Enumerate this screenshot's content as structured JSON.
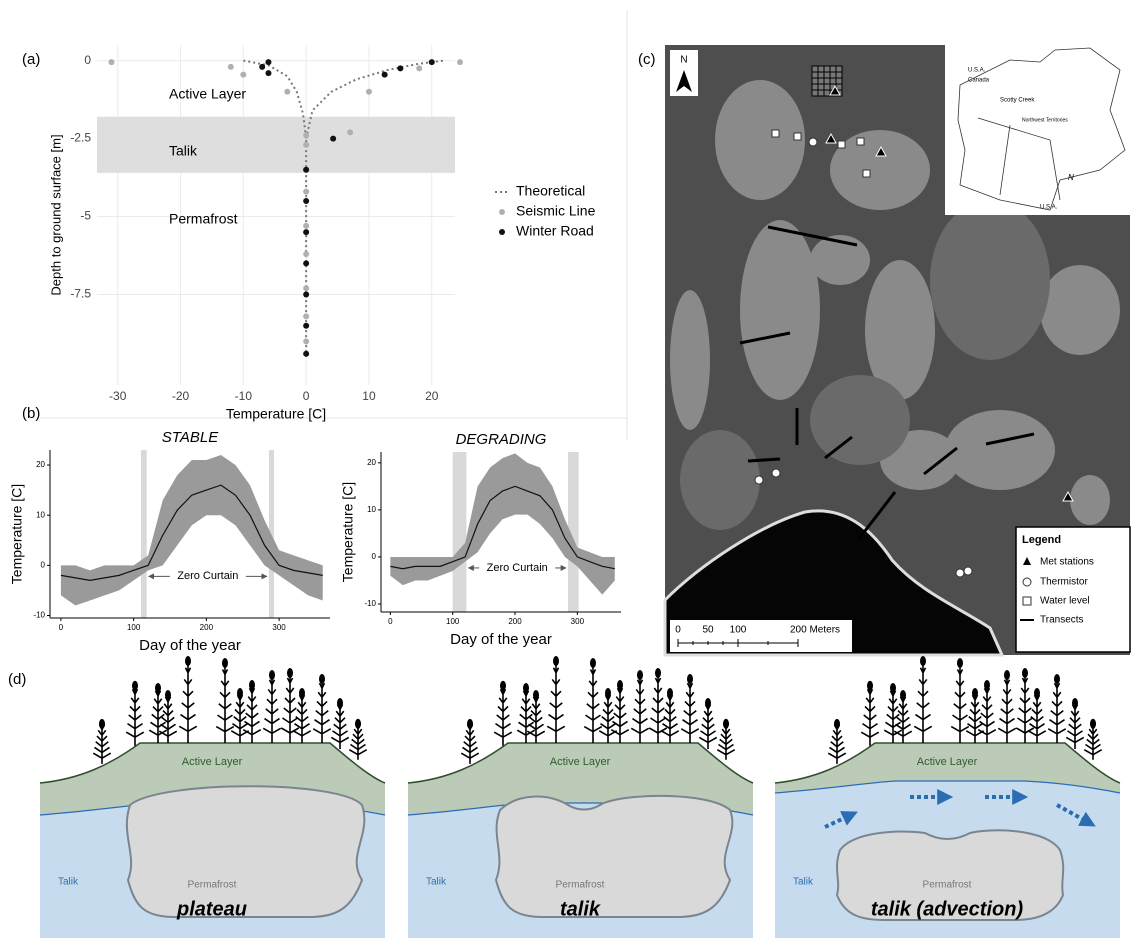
{
  "panel_labels": [
    "(a)",
    "(b)",
    "(c)",
    "(d)"
  ],
  "chart_data": [
    {
      "type": "scatter",
      "xlabel": "Temperature [C]",
      "ylabel": "Depth to ground surface [m]",
      "xlim": [
        -33.3,
        23.7
      ],
      "ylim": [
        -10.4,
        0.5
      ],
      "xticks": [
        -30,
        -20,
        -10,
        0,
        10,
        20
      ],
      "yticks": [
        0,
        -2.5,
        -5,
        -7.5
      ],
      "grid": true,
      "annotations": [
        "Active Layer",
        "Talik",
        "Permafrost"
      ],
      "talik_band": [
        -1.8,
        -3.6
      ],
      "band_color": "#dedede",
      "series": [
        {
          "name": "Theoretical",
          "color": "#777777",
          "style": "dotted-line",
          "x": [
            -10,
            -6,
            -3,
            -1.5,
            -0.5,
            0,
            0,
            0,
            0,
            1,
            4,
            8,
            13,
            18,
            22
          ],
          "values": [
            0,
            -0.15,
            -0.5,
            -1.0,
            -1.7,
            -2.5,
            -9.5,
            null,
            -2.5,
            -1.6,
            -1.0,
            -0.6,
            -0.3,
            -0.1,
            0
          ]
        },
        {
          "name": "Seismic Line",
          "color": "#b0b0b0",
          "style": "points",
          "x": [
            -31,
            -12,
            -10,
            -3,
            0,
            7,
            10,
            18,
            24.5,
            0,
            0,
            0,
            0,
            0,
            0,
            0,
            0
          ],
          "values": [
            -0.05,
            -0.2,
            -0.45,
            -1.0,
            -2.4,
            -2.3,
            -1.0,
            -0.25,
            -0.05,
            -2.7,
            -3.5,
            -4.2,
            -5.3,
            -6.2,
            -7.3,
            -8.2,
            -9.0
          ]
        },
        {
          "name": "Winter Road",
          "color": "#111111",
          "style": "points",
          "x": [
            -7,
            -6,
            -6,
            4.3,
            12.5,
            15,
            20,
            0,
            0,
            0,
            0,
            0,
            0,
            0
          ],
          "values": [
            -0.2,
            -0.05,
            -0.4,
            -2.5,
            -0.45,
            -0.25,
            -0.05,
            -3.5,
            -4.5,
            -5.5,
            -6.5,
            -7.5,
            -8.5,
            -9.4
          ]
        }
      ]
    },
    {
      "type": "line",
      "title": "STABLE",
      "xlabel": "Day of the year",
      "ylabel": "Temperature [C]",
      "xlim": [
        -15,
        370
      ],
      "ylim": [
        -10.5,
        23
      ],
      "xticks": [
        0,
        100,
        200,
        300
      ],
      "yticks": [
        -10,
        0,
        10,
        20
      ],
      "color": "#111111",
      "band_color": "#9a9a9a",
      "x": [
        0,
        20,
        40,
        60,
        80,
        100,
        120,
        140,
        160,
        180,
        200,
        220,
        240,
        260,
        280,
        300,
        320,
        340,
        360
      ],
      "values": [
        -2,
        -2.5,
        -3,
        -2.5,
        -2,
        -1,
        0,
        6,
        11,
        14,
        15,
        16,
        14,
        10,
        4,
        0,
        -1,
        -1.5,
        -2
      ],
      "upper": [
        0,
        0,
        -1,
        0,
        0,
        0,
        2,
        13,
        18,
        21,
        21,
        22,
        20,
        16,
        9,
        3,
        2,
        1,
        0
      ],
      "lower": [
        -6,
        -8,
        -7,
        -6,
        -5,
        -3,
        -1,
        0,
        4,
        8,
        10,
        10,
        8,
        4,
        0,
        -2,
        -4,
        -6,
        -7
      ],
      "zero_curtain": [
        [
          110,
          118
        ],
        [
          286,
          293
        ]
      ],
      "annotation": "Zero Curtain"
    },
    {
      "type": "line",
      "title": "DEGRADING",
      "xlabel": "Day of the year",
      "ylabel": "Temperature [C]",
      "xlim": [
        -15,
        370
      ],
      "ylim": [
        -11.7,
        22.3
      ],
      "xticks": [
        0,
        100,
        200,
        300
      ],
      "yticks": [
        -10,
        0,
        10,
        20
      ],
      "color": "#111111",
      "band_color": "#9a9a9a",
      "x": [
        0,
        20,
        40,
        60,
        80,
        100,
        120,
        140,
        160,
        180,
        200,
        220,
        240,
        260,
        280,
        300,
        320,
        340,
        360
      ],
      "values": [
        -2,
        -2.5,
        -2,
        -2,
        -2,
        -1,
        0,
        7,
        12,
        14,
        15,
        14,
        13,
        10,
        4,
        0,
        -1,
        -2,
        -2.5
      ],
      "upper": [
        0,
        0,
        0,
        0,
        0,
        0,
        3,
        15,
        19,
        21,
        22,
        20,
        19,
        15,
        8,
        2,
        1,
        0,
        0
      ],
      "lower": [
        -4,
        -6,
        -5,
        -5,
        -4,
        -3,
        -1,
        1,
        5,
        8,
        9,
        9,
        7,
        4,
        0,
        -2,
        -5,
        -8,
        -5
      ],
      "zero_curtain": [
        [
          100,
          122
        ],
        [
          285,
          302
        ]
      ],
      "annotation": "Zero Curtain"
    }
  ],
  "map": {
    "north": "N",
    "legend": {
      "title": "Legend",
      "items": [
        "Met stations",
        "Thermistor",
        "Water level",
        "Transects"
      ]
    },
    "scale": [
      "0",
      "50",
      "100",
      "200 Meters"
    ],
    "inset": [
      "U.S.A.",
      "Canada",
      "Scotty Creek",
      "Northwest Territories",
      "N",
      "U.S.A."
    ]
  },
  "diagrams": [
    {
      "active_layer": "Active Layer",
      "permafrost": "Permafrost",
      "talik": "Talik",
      "title": "plateau"
    },
    {
      "active_layer": "Active Layer",
      "permafrost": "Permafrost",
      "talik": "Talik",
      "title": "talik"
    },
    {
      "active_layer": "Active Layer",
      "permafrost": "Permafrost",
      "talik": "Talik",
      "title": "talik (advection)"
    }
  ]
}
